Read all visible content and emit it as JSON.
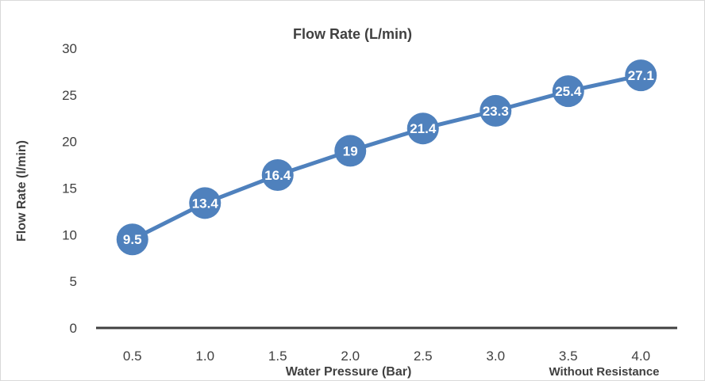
{
  "chart_data": {
    "type": "line",
    "title": "Flow Rate (L/min)",
    "xlabel": "Water Pressure (Bar)",
    "x_annotation": "Without Resistance",
    "ylabel": "Flow Rate (l/min)",
    "categories": [
      "0.5",
      "1.0",
      "1.5",
      "2.0",
      "2.5",
      "3.0",
      "3.5",
      "4.0"
    ],
    "series": [
      {
        "values": [
          9.5,
          13.4,
          16.4,
          19,
          21.4,
          23.3,
          25.4,
          27.1
        ],
        "data_labels": [
          "9.5",
          "13.4",
          "16.4",
          "19",
          "21.4",
          "23.3",
          "25.4",
          "27.1"
        ],
        "color": "#4f81bd"
      }
    ],
    "ylim": [
      0,
      30
    ],
    "y_ticks": [
      "0",
      "5",
      "10",
      "15",
      "20",
      "25",
      "30"
    ],
    "y_tick_values": [
      0,
      5,
      10,
      15,
      20,
      25,
      30
    ],
    "grid": false,
    "axis_color": "#404040",
    "marker_color": "#4f81bd",
    "label_color": "#ffffff"
  }
}
